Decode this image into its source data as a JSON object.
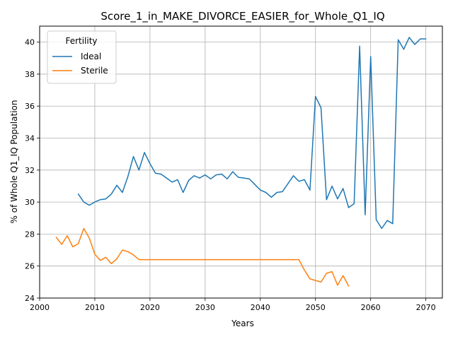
{
  "chart_data": {
    "type": "line",
    "title": "Score_1_in_MAKE_DIVORCE_EASIER_for_Whole_Q1_IQ",
    "xlabel": "Years",
    "ylabel": "% of Whole Q1_IQ Population",
    "xlim": [
      2000,
      2073
    ],
    "ylim": [
      24,
      41
    ],
    "xticks": [
      2000,
      2010,
      2020,
      2030,
      2040,
      2050,
      2060,
      2070
    ],
    "yticks": [
      24,
      26,
      28,
      30,
      32,
      34,
      36,
      38,
      40
    ],
    "grid": true,
    "legend": {
      "title": "Fertility",
      "placement": "top-left"
    },
    "colors": {
      "Ideal": "#1f77b4",
      "Sterile": "#ff7f0e"
    },
    "series": [
      {
        "name": "Ideal",
        "x": [
          2007,
          2008,
          2009,
          2010,
          2011,
          2012,
          2013,
          2014,
          2015,
          2016,
          2017,
          2018,
          2019,
          2020,
          2021,
          2022,
          2023,
          2024,
          2025,
          2026,
          2027,
          2028,
          2029,
          2030,
          2031,
          2032,
          2033,
          2034,
          2035,
          2036,
          2037,
          2038,
          2039,
          2040,
          2041,
          2042,
          2043,
          2044,
          2045,
          2046,
          2047,
          2048,
          2049,
          2050,
          2051,
          2052,
          2053,
          2054,
          2055,
          2056,
          2057,
          2058,
          2059,
          2060,
          2061,
          2062,
          2063,
          2064,
          2065,
          2066,
          2067,
          2068,
          2069,
          2070
        ],
        "values": [
          30.5,
          30.0,
          29.8,
          30.0,
          30.15,
          30.2,
          30.5,
          31.05,
          30.6,
          31.6,
          32.85,
          32.0,
          33.1,
          32.4,
          31.8,
          31.75,
          31.5,
          31.25,
          31.4,
          30.6,
          31.35,
          31.65,
          31.5,
          31.7,
          31.45,
          31.7,
          31.75,
          31.45,
          31.9,
          31.55,
          31.5,
          31.45,
          31.1,
          30.75,
          30.6,
          30.3,
          30.6,
          30.65,
          31.15,
          31.65,
          31.3,
          31.4,
          30.75,
          36.6,
          35.9,
          30.15,
          31.0,
          30.2,
          30.85,
          29.65,
          29.9,
          39.75,
          29.2,
          39.1,
          28.9,
          28.35,
          28.85,
          28.65,
          40.15,
          39.55,
          40.3,
          39.85,
          40.2,
          40.2
        ]
      },
      {
        "name": "Sterile",
        "x": [
          2003,
          2004,
          2005,
          2006,
          2007,
          2008,
          2009,
          2010,
          2011,
          2012,
          2013,
          2014,
          2015,
          2016,
          2017,
          2018,
          2019,
          2020,
          2021,
          2022,
          2023,
          2024,
          2025,
          2026,
          2027,
          2028,
          2029,
          2030,
          2031,
          2032,
          2033,
          2034,
          2035,
          2036,
          2037,
          2038,
          2039,
          2040,
          2041,
          2042,
          2043,
          2044,
          2045,
          2046,
          2047,
          2048,
          2049,
          2050,
          2051,
          2052,
          2053,
          2054,
          2055,
          2056
        ],
        "values": [
          27.8,
          27.35,
          27.9,
          27.2,
          27.4,
          28.35,
          27.75,
          26.75,
          26.35,
          26.55,
          26.15,
          26.45,
          27.0,
          26.9,
          26.7,
          26.4,
          26.4,
          26.4,
          26.4,
          26.4,
          26.4,
          26.4,
          26.4,
          26.4,
          26.4,
          26.4,
          26.4,
          26.4,
          26.4,
          26.4,
          26.4,
          26.4,
          26.4,
          26.4,
          26.4,
          26.4,
          26.4,
          26.4,
          26.4,
          26.4,
          26.4,
          26.4,
          26.4,
          26.4,
          26.4,
          25.75,
          25.2,
          25.1,
          25.0,
          25.55,
          25.65,
          24.8,
          25.4,
          24.75
        ]
      }
    ]
  }
}
